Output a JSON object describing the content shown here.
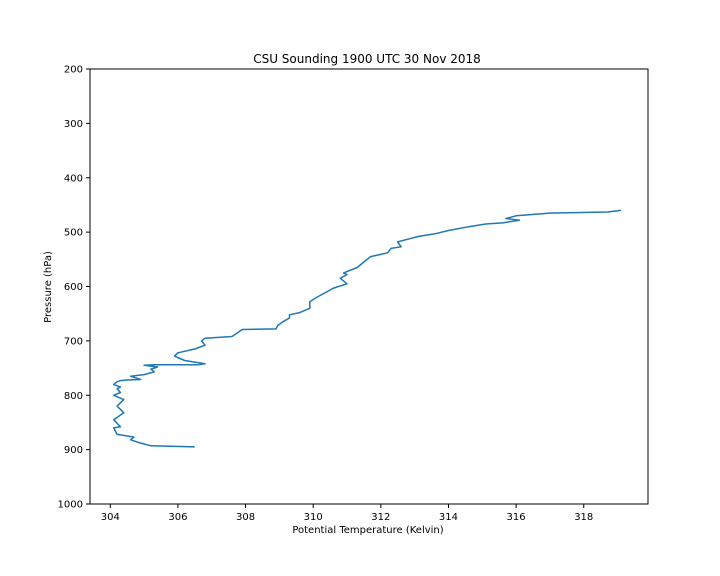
{
  "chart_data": {
    "type": "line",
    "title": "CSU Sounding 1900 UTC 30 Nov 2018",
    "xlabel": "Potential Temperature (Kelvin)",
    "ylabel": "Pressure (hPa)",
    "xlim": [
      303.4,
      319.9
    ],
    "ylim": [
      1000,
      200
    ],
    "y_inverted": true,
    "grid": false,
    "xticks": [
      "304",
      "306",
      "308",
      "310",
      "312",
      "314",
      "316",
      "318"
    ],
    "yticks": [
      "200",
      "300",
      "400",
      "500",
      "600",
      "700",
      "800",
      "900",
      "1000"
    ],
    "line_color": "#1f77b4",
    "series": [
      {
        "x": [
          306.5,
          305.2,
          304.9,
          304.6,
          304.7,
          304.5,
          304.2,
          304.1,
          304.3,
          304.1,
          304.4,
          304.2,
          304.4,
          304.1,
          304.3,
          304.2,
          304.3,
          304.1,
          304.2,
          304.3,
          304.5,
          304.9,
          304.6,
          305.0,
          305.3,
          305.2,
          305.4,
          305.0,
          305.3,
          306.6,
          306.8,
          306.2,
          305.9,
          306.0,
          306.5,
          306.8,
          306.7,
          306.8,
          307.6,
          307.7,
          307.9,
          308.9,
          308.95,
          309.1,
          309.3,
          309.3,
          309.6,
          309.9,
          309.9,
          310.1,
          310.4,
          310.6,
          311.0,
          310.8,
          311.0,
          310.9,
          311.3,
          311.5,
          311.7,
          312.2,
          312.3,
          312.6,
          312.5,
          312.8,
          313.1,
          313.6,
          314.0,
          314.6,
          315.1,
          315.6,
          316.1,
          315.7,
          316.0,
          317.0,
          318.7,
          319.1
        ],
        "y": [
          895,
          893,
          888,
          882,
          877,
          875,
          872,
          860,
          858,
          845,
          832,
          820,
          808,
          800,
          795,
          788,
          785,
          780,
          775,
          773,
          772,
          771,
          765,
          762,
          757,
          752,
          748,
          745,
          744,
          744,
          742,
          736,
          728,
          722,
          715,
          708,
          700,
          695,
          692,
          688,
          679,
          678,
          672,
          665,
          658,
          652,
          648,
          640,
          628,
          620,
          610,
          603,
          595,
          585,
          578,
          575,
          565,
          555,
          545,
          538,
          530,
          527,
          518,
          513,
          508,
          503,
          497,
          490,
          485,
          483,
          478,
          475,
          470,
          465,
          463,
          460
        ]
      }
    ]
  }
}
